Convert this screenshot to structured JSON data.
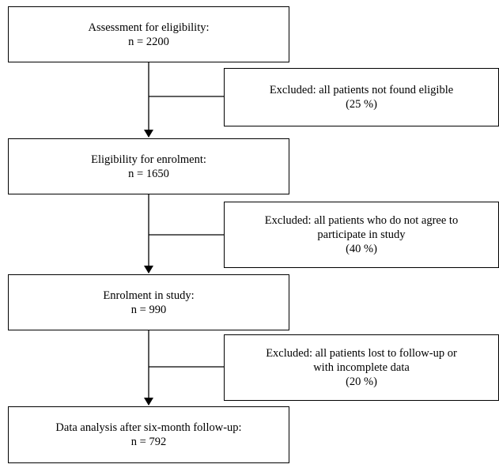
{
  "main_boxes": [
    {
      "title": "Assessment for eligibility:",
      "count": "n = 2200"
    },
    {
      "title": "Eligibility for enrolment:",
      "count": "n = 1650"
    },
    {
      "title": "Enrolment in study:",
      "count": "n = 990"
    },
    {
      "title": "Data analysis after six-month follow-up:",
      "count": "n = 792"
    }
  ],
  "exclusion_boxes": [
    {
      "lines": [
        "Excluded: all patients not found eligible",
        "(25 %)"
      ]
    },
    {
      "lines": [
        "Excluded: all patients who do not agree to",
        "participate in study",
        "(40 %)"
      ]
    },
    {
      "lines": [
        "Excluded: all patients lost to follow-up or",
        "with incomplete data",
        "(20 %)"
      ]
    }
  ]
}
